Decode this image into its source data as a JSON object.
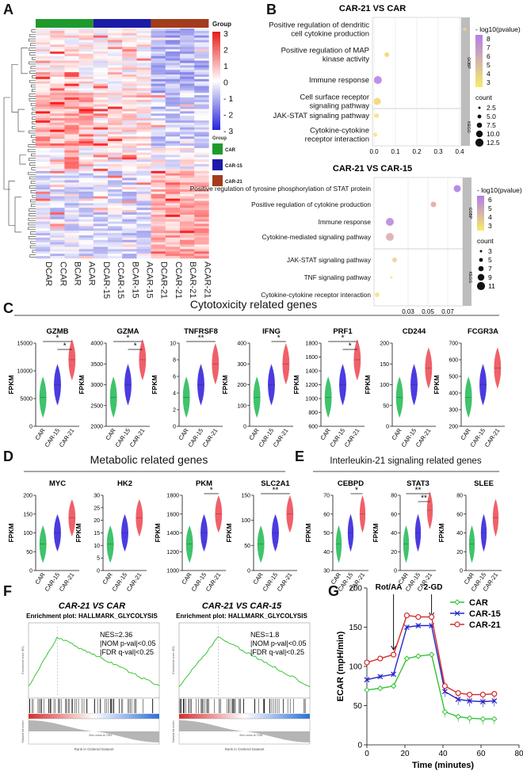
{
  "panel_labels": [
    "A",
    "B",
    "C",
    "D",
    "E",
    "F",
    "G"
  ],
  "heatmap": {
    "legend_title": "Group",
    "scale_ticks": [
      "3",
      "2",
      "1",
      "0",
      "- 1",
      "- 2",
      "- 3"
    ],
    "group_legend": [
      "CAR",
      "CAR-15",
      "CAR-21"
    ],
    "group_colors": [
      "#1e9a2c",
      "#1b1ba8",
      "#a23c1b"
    ],
    "columns": [
      "DCAR",
      "CCAR",
      "BCAR",
      "ACAR",
      "DCAR-15",
      "CCAR-15",
      "BCAR-15",
      "ACAR-15",
      "DCAR-21",
      "CCAR-21",
      "BCAR-21",
      "ACAR-21"
    ]
  },
  "enrichment": {
    "plot1_title": "CAR-21 VS CAR",
    "plot1_terms": [
      "Positive regulation of dendritic cell cytokine production",
      "Positive regulation of MAP kinase activity",
      "Immune response",
      "Cell surface receptor signaling pathway",
      "JAK-STAT signaling pathway",
      "Cytokine-cytokine receptor interaction"
    ],
    "plot1_xticks": [
      "0.0",
      "0.1",
      "0.2",
      "0.3",
      "0.4"
    ],
    "plot1_legend_pval_title": "- log10(pvalue)",
    "plot1_pval_ticks": [
      "8",
      "7",
      "6",
      "5",
      "4",
      "3"
    ],
    "plot1_count_title": "count",
    "plot1_count_ticks": [
      "2.5",
      "5.0",
      "7.5",
      "10.0",
      "12.5"
    ],
    "plot2_title": "CAR-21 VS CAR-15",
    "plot2_terms": [
      "Positive regulation of tyrosine phosphorylation of STAT protein",
      "Positive regulation of cytokine production",
      "Immune response",
      "Cytokine-mediated signaling pathway",
      "JAK-STAT signaling pathway",
      "TNF signaling pathway",
      "Cytokine-cytokine receptor interaction"
    ],
    "plot2_xticks": [
      "0.03",
      "0.05",
      "0.07"
    ],
    "plot2_pval_ticks": [
      "6",
      "5",
      "4",
      "3"
    ],
    "plot2_count_ticks": [
      "3",
      "5",
      "7",
      "9",
      "11"
    ],
    "strip_gobp": "GOBP",
    "strip_kegg": "KEGG"
  },
  "panel_c": {
    "title": "Cytotoxicity related genes",
    "genes": [
      {
        "name": "GZMB",
        "yticks": [
          "0",
          "5000",
          "10000",
          "15000"
        ],
        "sig": [
          "*",
          "*"
        ]
      },
      {
        "name": "GZMA",
        "yticks": [
          "2000",
          "2500",
          "3000",
          "3500",
          "4000"
        ],
        "sig": [
          "*",
          "*"
        ]
      },
      {
        "name": "TNFRSF8",
        "yticks": [
          "0",
          "2",
          "4",
          "6",
          "8",
          "10"
        ],
        "sig": [
          "**"
        ]
      },
      {
        "name": "IFNG",
        "yticks": [
          "0",
          "100",
          "200",
          "300",
          "400"
        ],
        "sig": [
          "*"
        ]
      },
      {
        "name": "PRF1",
        "yticks": [
          "600",
          "800",
          "1000",
          "1200",
          "1400",
          "1600",
          "1800"
        ],
        "sig": [
          "*",
          "*"
        ]
      },
      {
        "name": "CD244",
        "yticks": [
          "0",
          "50",
          "100",
          "150",
          "200"
        ],
        "sig": []
      },
      {
        "name": "FCGR3A",
        "yticks": [
          "200",
          "300",
          "400",
          "500",
          "600",
          "700"
        ],
        "sig": []
      }
    ]
  },
  "panel_d": {
    "title": "Metabolic related genes",
    "genes": [
      {
        "name": "MYC",
        "yticks": [
          "0",
          "50",
          "100",
          "150",
          "200"
        ],
        "sig": []
      },
      {
        "name": "HK2",
        "yticks": [
          "0",
          "5",
          "10",
          "15",
          "20",
          "25",
          "30"
        ],
        "sig": []
      },
      {
        "name": "PKM",
        "yticks": [
          "1000",
          "1200",
          "1400",
          "1600",
          "1800"
        ],
        "sig": [
          "*"
        ]
      },
      {
        "name": "SLC2A1",
        "yticks": [
          "0",
          "50",
          "100",
          "150"
        ],
        "sig": [
          "**"
        ]
      }
    ]
  },
  "panel_e": {
    "title": "Interleukin-21 signaling related genes",
    "genes": [
      {
        "name": "CEBPD",
        "yticks": [
          "30",
          "40",
          "50",
          "60",
          "70"
        ],
        "sig": [
          "*"
        ]
      },
      {
        "name": "STAT3",
        "yticks": [
          "0",
          "20",
          "40",
          "60",
          "80"
        ],
        "sig": [
          "**",
          "**"
        ]
      },
      {
        "name": "SLEE",
        "yticks": [
          "0",
          "20",
          "40",
          "60",
          "80"
        ],
        "sig": []
      }
    ]
  },
  "violin_common": {
    "ylabel": "FPKM",
    "groups": [
      "CAR",
      "CAR-15",
      "CAR-21"
    ],
    "colors": [
      "#3fc36b",
      "#4b3be0",
      "#f0606a"
    ]
  },
  "panel_f": {
    "left_title": "CAR-21 VS CAR",
    "right_title": "CAR-21 VS CAR-15",
    "subtitle": "Enrichment plot:  HALLMARK_GLYCOLYSIS",
    "left_stats": [
      "NES=2.36",
      "|NOM p-val|<0.05",
      "|FDR q-val|<0.25"
    ],
    "right_stats": [
      "NES=1.8",
      "|NOM p-val|<0.05",
      "|FDR q-val|<0.25"
    ],
    "xlabel": "Rank in Ordered Dataset",
    "ylabel_top": "Enrichment score (ES)",
    "ylabel_bottom": "Ranked list metric",
    "zero_cross_left": "Zero cross at 7951",
    "zero_cross_right": "Zero cross at 7936"
  },
  "chart_data": {
    "type": "line",
    "title": "",
    "xlabel": "Time (minutes)",
    "ylabel": "ECAR (mpH/min)",
    "xlim": [
      0,
      80
    ],
    "ylim": [
      0,
      200
    ],
    "xticks": [
      "0",
      "20",
      "40",
      "60",
      "80"
    ],
    "yticks": [
      "0",
      "50",
      "100",
      "150",
      "200"
    ],
    "annotations": [
      "Rot/AA",
      "2-GD"
    ],
    "annotation_x": [
      14,
      34
    ],
    "x": [
      0,
      7,
      14,
      21,
      27,
      34,
      41,
      48,
      54,
      61,
      67
    ],
    "series": [
      {
        "name": "CAR",
        "color": "#2fc32f",
        "values": [
          70,
          72,
          75,
          110,
          113,
          115,
          42,
          36,
          34,
          33,
          33
        ]
      },
      {
        "name": "CAR-15",
        "color": "#2424c9",
        "values": [
          83,
          87,
          90,
          150,
          152,
          152,
          68,
          58,
          56,
          55,
          56
        ]
      },
      {
        "name": "CAR-21",
        "color": "#d42a2a",
        "values": [
          105,
          110,
          115,
          165,
          163,
          163,
          75,
          66,
          64,
          64,
          65
        ]
      }
    ]
  }
}
